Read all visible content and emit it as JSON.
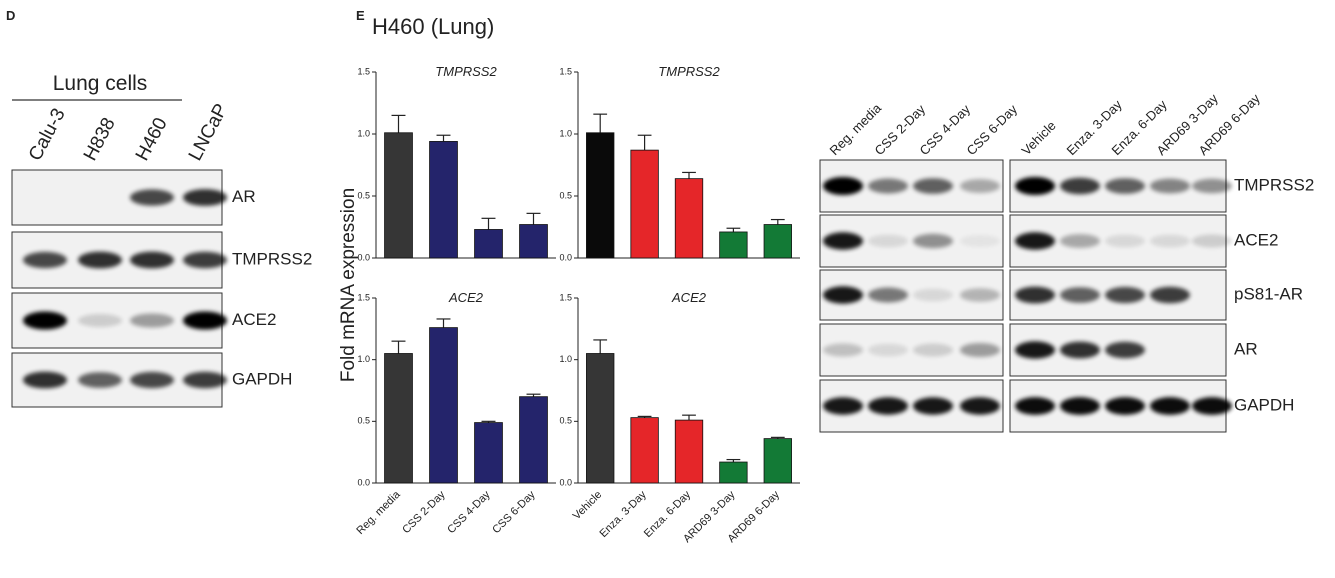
{
  "panels": [
    "D",
    "E"
  ],
  "figure_title": "H460 (Lung)",
  "y_axis_label": "Fold mRNA expression",
  "blot_d": {
    "group_label": "Lung cells",
    "lanes": [
      "Calu-3",
      "H838",
      "H460",
      "LNCaP"
    ],
    "proteins": [
      "AR",
      "TMPRSS2",
      "ACE2",
      "GAPDH"
    ]
  },
  "blot_e": {
    "lanes_left": [
      "Reg. media",
      "CSS 2-Day",
      "CSS 4-Day",
      "CSS 6-Day"
    ],
    "lanes_right": [
      "Vehicle",
      "Enza. 3-Day",
      "Enza. 6-Day",
      "ARD69 3-Day",
      "ARD69 6-Day"
    ],
    "proteins": [
      "TMPRSS2",
      "ACE2",
      "pS81-AR",
      "AR",
      "GAPDH"
    ]
  },
  "chart_data": [
    {
      "type": "bar",
      "title": "TMPRSS2",
      "categories": [
        null,
        null,
        null,
        null
      ],
      "values": [
        1.01,
        0.94,
        0.23,
        0.27
      ],
      "errors": [
        0.14,
        0.05,
        0.09,
        0.09
      ],
      "colors": [
        "#363636",
        "#24246b",
        "#24246b",
        "#24246b"
      ],
      "ylim": [
        0,
        1.5
      ],
      "yticks": [
        {
          "value": 0,
          "label": "0.0"
        },
        {
          "value": 0.5,
          "label": "0.5"
        },
        {
          "value": 1,
          "label": "1.0"
        },
        {
          "value": 1.5,
          "label": "1.5"
        }
      ]
    },
    {
      "type": "bar",
      "title": "TMPRSS2",
      "categories": [
        null,
        null,
        null,
        null,
        null
      ],
      "values": [
        1.01,
        0.87,
        0.64,
        0.21,
        0.27
      ],
      "errors": [
        0.15,
        0.12,
        0.05,
        0.03,
        0.04
      ],
      "colors": [
        "#0a0a0a",
        "#e52629",
        "#e52629",
        "#137a36",
        "#137a36"
      ],
      "ylim": [
        0,
        1.5
      ],
      "yticks": [
        {
          "value": 0,
          "label": "0.0"
        },
        {
          "value": 0.5,
          "label": "0.5"
        },
        {
          "value": 1,
          "label": "1.0"
        },
        {
          "value": 1.5,
          "label": "1.5"
        }
      ]
    },
    {
      "type": "bar",
      "title": "ACE2",
      "categories": [
        "Reg. media",
        "CSS 2-Day",
        "CSS 4-Day",
        "CSS 6-Day"
      ],
      "values": [
        1.05,
        1.26,
        0.49,
        0.7
      ],
      "errors": [
        0.1,
        0.07,
        0.01,
        0.02
      ],
      "colors": [
        "#363636",
        "#24246b",
        "#24246b",
        "#24246b"
      ],
      "ylim": [
        0,
        1.5
      ],
      "yticks": [
        {
          "value": 0,
          "label": "0.0"
        },
        {
          "value": 0.5,
          "label": "0.5"
        },
        {
          "value": 1,
          "label": "1.0"
        },
        {
          "value": 1.5,
          "label": "1.5"
        }
      ]
    },
    {
      "type": "bar",
      "title": "ACE2",
      "categories": [
        "Vehicle",
        "Enza. 3-Day",
        "Enza. 6-Day",
        "ARD69 3-Day",
        "ARD69 6-Day"
      ],
      "values": [
        1.05,
        0.53,
        0.51,
        0.17,
        0.36
      ],
      "errors": [
        0.11,
        0.01,
        0.04,
        0.02,
        0.01
      ],
      "colors": [
        "#363636",
        "#e52629",
        "#e52629",
        "#137a36",
        "#137a36"
      ],
      "ylim": [
        0,
        1.5
      ],
      "yticks": [
        {
          "value": 0,
          "label": "0.0"
        },
        {
          "value": 0.5,
          "label": "0.5"
        },
        {
          "value": 1,
          "label": "1.0"
        },
        {
          "value": 1.5,
          "label": "1.5"
        }
      ]
    }
  ]
}
